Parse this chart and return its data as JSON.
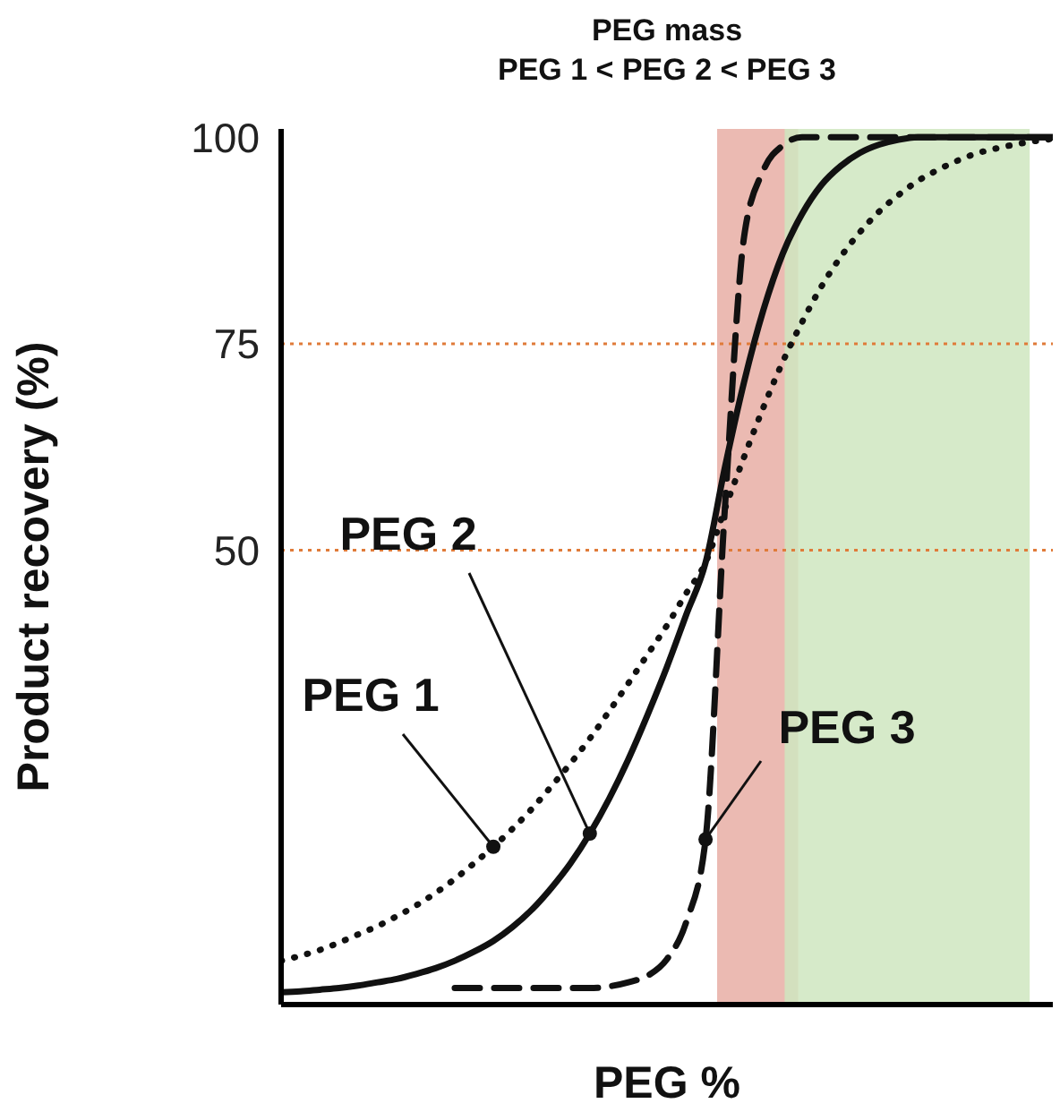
{
  "chart_data": {
    "type": "line",
    "title": "PEG mass",
    "subtitle": "PEG 1 < PEG 2 < PEG 3",
    "xlabel": "PEG %",
    "ylabel": "Product recovery (%)",
    "categories": [
      null,
      null,
      null,
      null,
      null,
      null,
      null,
      null,
      null,
      null,
      null,
      null,
      null,
      null,
      null,
      null,
      null,
      null,
      null,
      null,
      null,
      null,
      null,
      null,
      null,
      null,
      null,
      null,
      null,
      null,
      null,
      null,
      null,
      null,
      null,
      null,
      null,
      null,
      null,
      null,
      null
    ],
    "series": [
      {
        "name": "PEG 1",
        "color": "#111111",
        "line_style": "dotted",
        "values": [
          0.3,
          0.9,
          1.6,
          2.5,
          3.5,
          4.5,
          5.7,
          7.0,
          8.5,
          10.2,
          12.1,
          14.1,
          16.3,
          18.7,
          21.4,
          24.2,
          27.2,
          30.5,
          33.9,
          37.4,
          40.9,
          44.8,
          48.5,
          55.0,
          61.3,
          67.3,
          72.8,
          77.6,
          81.9,
          85.5,
          88.5,
          91.0,
          93.0,
          94.7,
          96.0,
          97.1,
          98.0,
          98.6,
          99.1,
          99.5,
          99.8
        ]
      },
      {
        "name": "PEG 2",
        "color": "#111111",
        "line_style": "solid",
        "values": [
          -3.5,
          -3.4,
          -3.2,
          -3.0,
          -2.7,
          -2.3,
          -1.9,
          -1.3,
          -0.6,
          0.3,
          1.4,
          2.7,
          4.4,
          6.5,
          9.1,
          12.1,
          15.7,
          19.9,
          24.7,
          30.1,
          35.9,
          42.2,
          48.5,
          60.0,
          70.4,
          79.1,
          85.9,
          90.7,
          94.2,
          96.5,
          98.1,
          99.1,
          99.7,
          100,
          100,
          100,
          100,
          100,
          100,
          100,
          100
        ]
      },
      {
        "name": "PEG 3",
        "color": "#111111",
        "line_style": "dashed",
        "values": [
          null,
          null,
          null,
          null,
          null,
          null,
          null,
          null,
          null,
          -3,
          -3,
          -3,
          -3,
          -3,
          -3,
          -3,
          -3,
          -2.8,
          -2.3,
          -1.5,
          0.5,
          5,
          15,
          55,
          88,
          96,
          99,
          100,
          100,
          100,
          100,
          100,
          100,
          100,
          100,
          100,
          100,
          100,
          100,
          100,
          100
        ]
      }
    ],
    "ylim": [
      -5,
      101
    ],
    "yticks": [
      100,
      75,
      50
    ],
    "tick_labels": "y",
    "grid": false,
    "legend": false,
    "marker": "none",
    "ref_lines": [
      {
        "axis": "y",
        "value": 75,
        "color": "#e07b39",
        "line_style": "dotted"
      },
      {
        "axis": "y",
        "value": 50,
        "color": "#e07b39",
        "line_style": "dotted"
      }
    ]
  }
}
